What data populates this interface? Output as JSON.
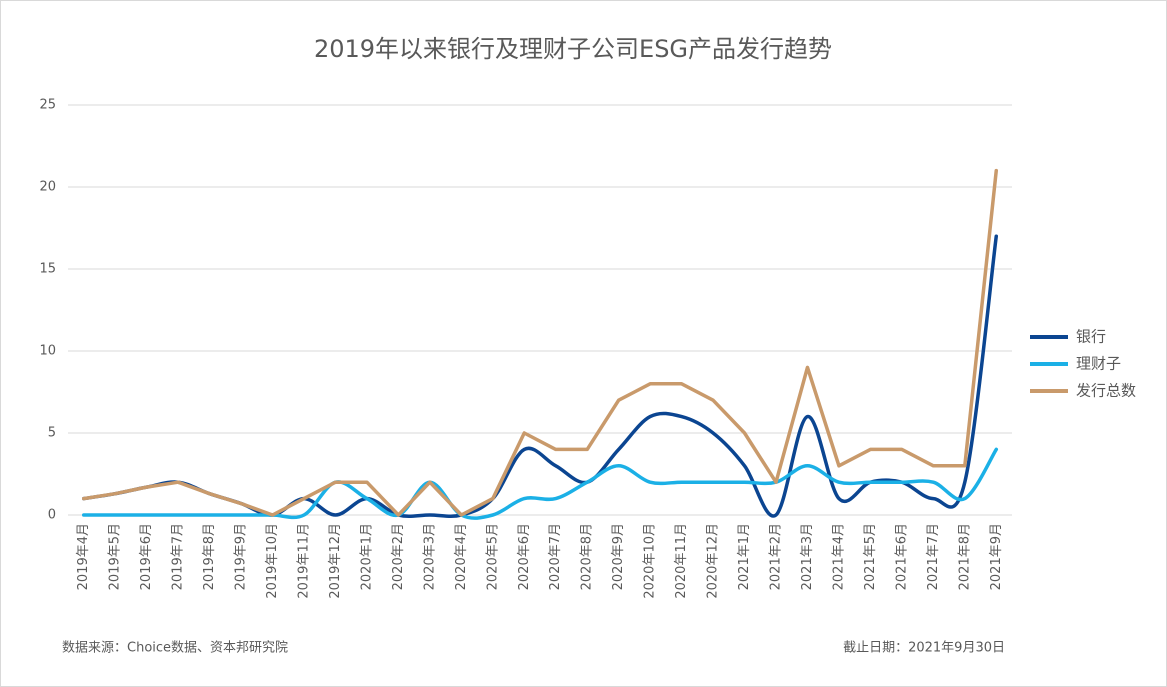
{
  "chart_data": {
    "type": "line",
    "title": "2019年以来银行及理财子公司ESG产品发行趋势",
    "categories": [
      "2019年4月",
      "2019年5月",
      "2019年6月",
      "2019年7月",
      "2019年8月",
      "2019年9月",
      "2019年10月",
      "2019年11月",
      "2019年12月",
      "2020年1月",
      "2020年2月",
      "2020年3月",
      "2020年4月",
      "2020年5月",
      "2020年6月",
      "2020年7月",
      "2020年8月",
      "2020年9月",
      "2020年10月",
      "2020年11月",
      "2020年12月",
      "2021年1月",
      "2021年2月",
      "2021年3月",
      "2021年4月",
      "2021年5月",
      "2021年6月",
      "2021年7月",
      "2021年8月",
      "2021年9月"
    ],
    "series": [
      {
        "name": "银行",
        "color": "#0b4591",
        "values": [
          1,
          1.3,
          1.7,
          2,
          1.3,
          0.7,
          0,
          1,
          0,
          1,
          0,
          0,
          0,
          1,
          4,
          3,
          2,
          4,
          6,
          6,
          5,
          3,
          0,
          6,
          1,
          2,
          2,
          1,
          2,
          17
        ]
      },
      {
        "name": "理财子",
        "color": "#1bb0e6",
        "values": [
          0,
          0,
          0,
          0,
          0,
          0,
          0,
          0,
          2,
          1,
          0,
          2,
          0,
          0,
          1,
          1,
          2,
          3,
          2,
          2,
          2,
          2,
          2,
          3,
          2,
          2,
          2,
          2,
          1,
          4
        ]
      },
      {
        "name": "发行总数",
        "color": "#c99a6b",
        "values": [
          1,
          1.3,
          1.7,
          2,
          1.3,
          0.7,
          0,
          1,
          2,
          2,
          0,
          2,
          0,
          1,
          5,
          4,
          4,
          7,
          8,
          8,
          7,
          5,
          2,
          9,
          3,
          4,
          4,
          3,
          3,
          21
        ]
      }
    ],
    "ylim": [
      0,
      25
    ],
    "yticks": [
      0,
      5,
      10,
      15,
      20,
      25
    ],
    "grid": true,
    "legend": "right",
    "source": "数据来源：Choice数据、资本邦研究院",
    "note": "截止日期：2021年9月30日"
  }
}
